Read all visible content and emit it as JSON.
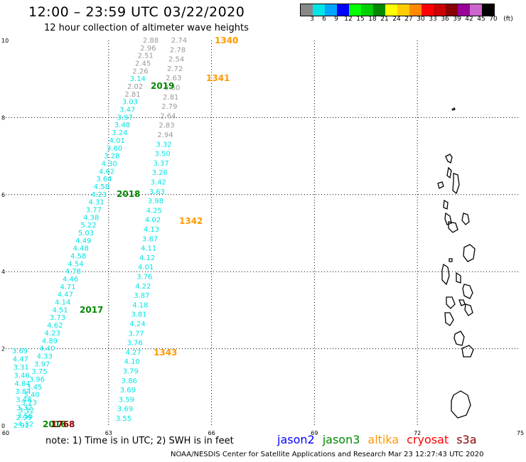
{
  "title": "12:00 – 23:59 UTC 03/22/2020",
  "subtitle": "12 hour collection of altimeter wave heights",
  "colorbar": {
    "unit_label": "(ft)",
    "ticks": [
      "3",
      "6",
      "9",
      "12",
      "15",
      "18",
      "21",
      "24",
      "27",
      "30",
      "33",
      "36",
      "39",
      "42",
      "45",
      "70"
    ],
    "colors": [
      "#888888",
      "#00e5e5",
      "#00a5ff",
      "#0000ff",
      "#00ff00",
      "#00d000",
      "#008800",
      "#ffff00",
      "#ffcc00",
      "#ff8800",
      "#ff0000",
      "#cc0000",
      "#880000",
      "#990099",
      "#cc66cc",
      "#000000"
    ]
  },
  "map": {
    "x_ticks": [
      "60",
      "63",
      "66",
      "69",
      "72",
      "75"
    ],
    "y_ticks": [
      "0",
      "2",
      "4",
      "6",
      "8",
      "10"
    ]
  },
  "tracks": [
    {
      "color": "#999999",
      "values": [
        "2.88",
        "2.96",
        "2.51",
        "2.45",
        "2.26",
        "3.14",
        "2.02",
        "2.81",
        "3.03",
        "3.47",
        "3.97",
        "3.48",
        "3.24",
        "4.01",
        "3.60",
        "3.28",
        "4.30",
        "4.62",
        "3.64",
        "4.58",
        "4.23",
        "4.31",
        "3.77",
        "4.38",
        "5.22",
        "5.03",
        "4.49",
        "4.48",
        "4.58",
        "4.54",
        "4.78",
        "4.46",
        "4.71",
        "4.47",
        "4.14",
        "4.51",
        "3.73",
        "4.62",
        "4.23",
        "4.89",
        "4.40",
        "4.33",
        "3.97",
        "3.75",
        "3.96",
        "3.45",
        "3.40",
        "3.23",
        "3.12",
        "2.99",
        "2.91"
      ],
      "value_colors": [
        "#999999",
        "#999999",
        "#999999",
        "#999999",
        "#999999",
        "#00e5e5",
        "#999999",
        "#999999",
        "#00e5e5",
        "#00e5e5",
        "#00e5e5",
        "#00e5e5",
        "#00e5e5",
        "#00e5e5",
        "#00e5e5",
        "#00e5e5",
        "#00e5e5",
        "#00e5e5",
        "#00e5e5",
        "#00e5e5",
        "#00e5e5",
        "#00e5e5",
        "#00e5e5",
        "#00e5e5",
        "#00e5e5",
        "#00e5e5",
        "#00e5e5",
        "#00e5e5",
        "#00e5e5",
        "#00e5e5",
        "#00e5e5",
        "#00e5e5",
        "#00e5e5",
        "#00e5e5",
        "#00e5e5",
        "#00e5e5",
        "#00e5e5",
        "#00e5e5",
        "#00e5e5",
        "#00e5e5",
        "#00e5e5",
        "#00e5e5",
        "#00e5e5",
        "#00e5e5",
        "#00e5e5",
        "#00e5e5",
        "#00e5e5",
        "#00e5e5",
        "#00e5e5",
        "#00e5e5",
        "#00e5e5"
      ]
    },
    {
      "color": "#999999",
      "values": [
        "2.74",
        "2.78",
        "2.54",
        "2.72",
        "2.63",
        "2.60",
        "2.81",
        "2.79",
        "2.64",
        "2.83",
        "2.94",
        "3.32",
        "3.50",
        "3.37",
        "3.26",
        "3.42",
        "3.63",
        "3.98",
        "4.25",
        "4.02",
        "4.13",
        "3.87",
        "4.11",
        "4.12",
        "4.01",
        "3.76",
        "4.22",
        "3.87",
        "4.18",
        "3.81",
        "4.24",
        "3.77",
        "3.76",
        "4.27",
        "4.10",
        "3.79",
        "3.86",
        "3.69",
        "3.59",
        "3.69",
        "3.55"
      ],
      "value_colors": [
        "#999999",
        "#999999",
        "#999999",
        "#999999",
        "#999999",
        "#999999",
        "#999999",
        "#999999",
        "#999999",
        "#999999",
        "#999999",
        "#00e5e5",
        "#00e5e5",
        "#00e5e5",
        "#00e5e5",
        "#00e5e5",
        "#00e5e5",
        "#00e5e5",
        "#00e5e5",
        "#00e5e5",
        "#00e5e5",
        "#00e5e5",
        "#00e5e5",
        "#00e5e5",
        "#00e5e5",
        "#00e5e5",
        "#00e5e5",
        "#00e5e5",
        "#00e5e5",
        "#00e5e5",
        "#00e5e5",
        "#00e5e5",
        "#00e5e5",
        "#00e5e5",
        "#00e5e5",
        "#00e5e5",
        "#00e5e5",
        "#00e5e5",
        "#00e5e5",
        "#00e5e5",
        "#00e5e5"
      ]
    },
    {
      "color": "#00e5e5",
      "values": [
        "3.69",
        "4.47",
        "3.31",
        "3.46",
        "4.84",
        "3.84",
        "3.48",
        "3.32",
        "3.56",
        "4.32"
      ],
      "value_colors": [
        "#00e5e5",
        "#00e5e5",
        "#00e5e5",
        "#00e5e5",
        "#00e5e5",
        "#00e5e5",
        "#00e5e5",
        "#00e5e5",
        "#00e5e5",
        "#00e5e5"
      ]
    }
  ],
  "pass_labels": [
    {
      "text": "1340",
      "color": "#ff9900"
    },
    {
      "text": "1341",
      "color": "#ff9900"
    },
    {
      "text": "1342",
      "color": "#ff9900"
    },
    {
      "text": "1343",
      "color": "#ff9900"
    },
    {
      "text": "2019",
      "color": "#008800"
    },
    {
      "text": "2018",
      "color": "#008800"
    },
    {
      "text": "2017",
      "color": "#008800"
    },
    {
      "text": "2016",
      "color": "#008800"
    },
    {
      "text": "1768",
      "color": "#880000"
    }
  ],
  "note": "note: 1) Time is in UTC; 2) SWH is in feet",
  "legend": [
    {
      "name": "jason2",
      "color": "#0000ff"
    },
    {
      "name": "jason3",
      "color": "#008800"
    },
    {
      "name": "altika",
      "color": "#ff9900"
    },
    {
      "name": "cryosat",
      "color": "#ff0000"
    },
    {
      "name": "s3a",
      "color": "#880000"
    }
  ],
  "footer": "NOAA/NESDIS Center for Satellite Applications and Research    Mar 23 12:27:43 UTC 2020"
}
